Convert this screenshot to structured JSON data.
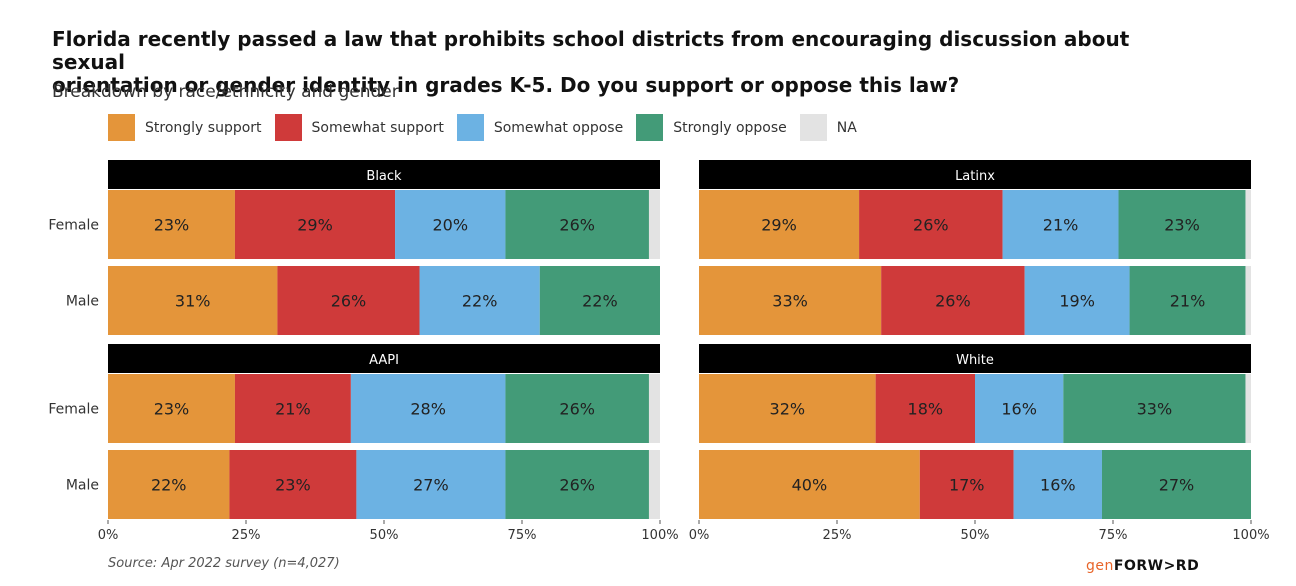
{
  "title_lines": [
    "Florida recently passed a law that prohibits school districts from encouraging discussion about sexual",
    "orientation or gender identity in grades K-5. Do you support or oppose this law?"
  ],
  "subtitle": "Breakdown by race/ethnicity and gender",
  "legend": [
    {
      "label": "Strongly support",
      "color": "#E4953A"
    },
    {
      "label": "Somewhat support",
      "color": "#CF3A3A"
    },
    {
      "label": "Somewhat oppose",
      "color": "#6CB2E3"
    },
    {
      "label": "Strongly oppose",
      "color": "#439B78"
    },
    {
      "label": "NA",
      "color": "#E3E3E3"
    }
  ],
  "source": "Source: Apr 2022 survey (n=4,027)",
  "brand": {
    "prefix": "gen",
    "name": "FORW>RD"
  },
  "chart_data": {
    "type": "bar",
    "orientation": "horizontal-stacked",
    "categories": [
      "Female",
      "Male"
    ],
    "xlim": [
      0,
      100
    ],
    "xticks": [
      "0%",
      "25%",
      "50%",
      "75%",
      "100%"
    ],
    "series_names": [
      "Strongly support",
      "Somewhat support",
      "Somewhat oppose",
      "Strongly oppose",
      "NA"
    ],
    "panels": [
      {
        "facet": "Black",
        "rows": [
          {
            "category": "Female",
            "values": [
              23,
              29,
              20,
              26,
              2
            ],
            "labels": [
              "23%",
              "29%",
              "20%",
              "26%",
              ""
            ]
          },
          {
            "category": "Male",
            "values": [
              31,
              26,
              22,
              22,
              0
            ],
            "labels": [
              "31%",
              "26%",
              "22%",
              "22%",
              ""
            ]
          }
        ]
      },
      {
        "facet": "Latinx",
        "rows": [
          {
            "category": "Female",
            "values": [
              29,
              26,
              21,
              23,
              1
            ],
            "labels": [
              "29%",
              "26%",
              "21%",
              "23%",
              ""
            ]
          },
          {
            "category": "Male",
            "values": [
              33,
              26,
              19,
              21,
              1
            ],
            "labels": [
              "33%",
              "26%",
              "19%",
              "21%",
              ""
            ]
          }
        ]
      },
      {
        "facet": "AAPI",
        "rows": [
          {
            "category": "Female",
            "values": [
              23,
              21,
              28,
              26,
              2
            ],
            "labels": [
              "23%",
              "21%",
              "28%",
              "26%",
              ""
            ]
          },
          {
            "category": "Male",
            "values": [
              22,
              23,
              27,
              26,
              2
            ],
            "labels": [
              "22%",
              "23%",
              "27%",
              "26%",
              ""
            ]
          }
        ]
      },
      {
        "facet": "White",
        "rows": [
          {
            "category": "Female",
            "values": [
              32,
              18,
              16,
              33,
              1
            ],
            "labels": [
              "32%",
              "18%",
              "16%",
              "33%",
              ""
            ]
          },
          {
            "category": "Male",
            "values": [
              40,
              17,
              16,
              27,
              0
            ],
            "labels": [
              "40%",
              "17%",
              "16%",
              "27%",
              ""
            ]
          }
        ]
      }
    ]
  }
}
